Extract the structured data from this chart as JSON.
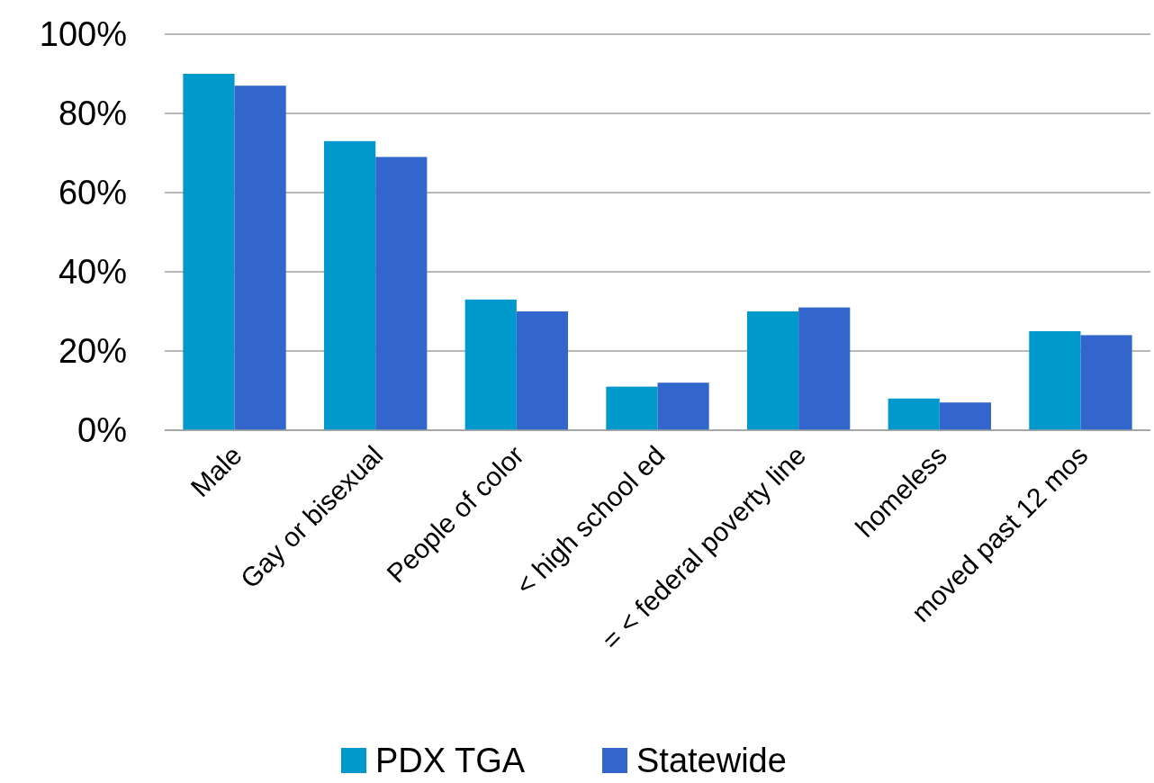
{
  "chart_data": {
    "type": "bar",
    "categories": [
      "Male",
      "Gay or bisexual",
      "People of color",
      "< high school ed",
      "= < federal poverty line",
      "homeless",
      "moved past 12 mos"
    ],
    "series": [
      {
        "name": "PDX TGA",
        "color": "#0099cc",
        "values": [
          90,
          73,
          33,
          11,
          30,
          8,
          25
        ]
      },
      {
        "name": "Statewide",
        "color": "#3366cc",
        "values": [
          87,
          69,
          30,
          12,
          31,
          7,
          24
        ]
      }
    ],
    "ylim": [
      0,
      100
    ],
    "yticks": [
      {
        "value": 0,
        "label": "0%"
      },
      {
        "value": 20,
        "label": "20%"
      },
      {
        "value": 40,
        "label": "40%"
      },
      {
        "value": 60,
        "label": "60%"
      },
      {
        "value": 80,
        "label": "80%"
      },
      {
        "value": 100,
        "label": "100%"
      }
    ],
    "grid": "y",
    "legend": "bottom"
  }
}
